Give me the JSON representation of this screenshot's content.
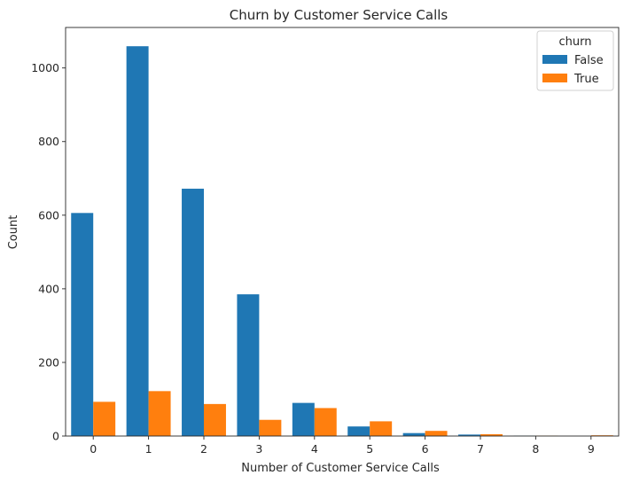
{
  "chart_data": {
    "type": "bar",
    "title": "Churn by Customer Service Calls",
    "xlabel": "Number of Customer Service Calls",
    "ylabel": "Count",
    "categories": [
      "0",
      "1",
      "2",
      "3",
      "4",
      "5",
      "6",
      "7",
      "8",
      "9"
    ],
    "series": [
      {
        "name": "False",
        "color": "#1f77b4",
        "values": [
          606,
          1059,
          672,
          385,
          90,
          26,
          8,
          4,
          1,
          0
        ]
      },
      {
        "name": "True",
        "color": "#ff7f0e",
        "values": [
          93,
          122,
          87,
          44,
          76,
          40,
          14,
          5,
          1,
          2
        ]
      }
    ],
    "ylim": [
      0,
      1110
    ],
    "yticks": [
      0,
      200,
      400,
      600,
      800,
      1000
    ],
    "legend": {
      "title": "churn",
      "position": "top-right"
    },
    "grid": false
  }
}
